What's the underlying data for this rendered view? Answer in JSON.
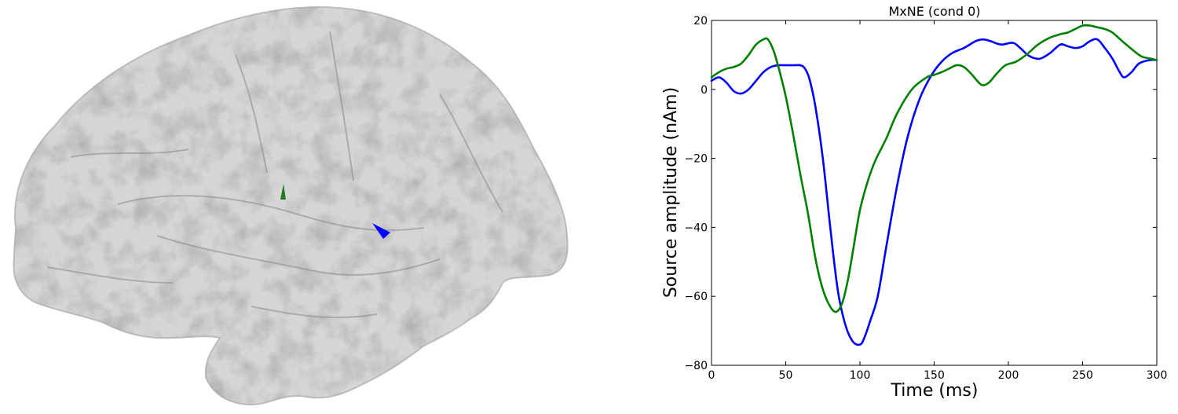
{
  "brain_view": {
    "surface_color": "#9a9a9a",
    "dipoles": [
      {
        "color": "#1f7a1f"
      },
      {
        "color": "#0000ff"
      }
    ]
  },
  "chart_data": {
    "type": "line",
    "title": "MxNE (cond 0)",
    "xlabel": "Time (ms)",
    "ylabel": "Source amplitude (nAm)",
    "xlim": [
      0,
      300
    ],
    "ylim": [
      -80,
      20
    ],
    "grid": false,
    "xticks": [
      0,
      50,
      100,
      150,
      200,
      250,
      300
    ],
    "xtick_labels": [
      "0",
      "50",
      "100",
      "150",
      "200",
      "250",
      "300"
    ],
    "yticks": [
      20,
      0,
      -20,
      -40,
      -60,
      -80
    ],
    "ytick_labels": [
      "20",
      "0",
      "−20",
      "−40",
      "−60",
      "−80"
    ],
    "series": [
      {
        "color": "#0000ff",
        "x": [
          0,
          5,
          10,
          15,
          20,
          25,
          30,
          35,
          40,
          45,
          50,
          55,
          60,
          63,
          66,
          70,
          75,
          80,
          85,
          90,
          95,
          100,
          103,
          107,
          112,
          118,
          125,
          132,
          140,
          148,
          155,
          162,
          170,
          178,
          183,
          188,
          195,
          203,
          208,
          213,
          218,
          222,
          228,
          235,
          240,
          245,
          250,
          255,
          260,
          265,
          270,
          275,
          278,
          283,
          288,
          295,
          300
        ],
        "y": [
          2.5,
          3.5,
          2,
          -0.5,
          -1.2,
          0,
          2.5,
          5,
          6.5,
          7,
          7,
          7,
          7,
          6,
          3,
          -5,
          -20,
          -40,
          -58,
          -68,
          -73,
          -74,
          -72,
          -67,
          -60,
          -45,
          -28,
          -14,
          -3,
          4,
          8,
          10.5,
          12,
          14,
          14.5,
          14,
          13,
          13.5,
          12,
          10,
          9,
          9,
          10.5,
          13,
          12.5,
          12,
          12.5,
          14,
          14.5,
          12,
          9,
          5,
          3.5,
          5,
          7.5,
          8.5,
          8.5
        ]
      },
      {
        "color": "#008000",
        "x": [
          0,
          5,
          10,
          15,
          20,
          25,
          30,
          35,
          38,
          42,
          46,
          50,
          55,
          60,
          65,
          70,
          75,
          80,
          84,
          88,
          92,
          96,
          100,
          105,
          110,
          118,
          125,
          135,
          145,
          150,
          155,
          160,
          165,
          170,
          175,
          180,
          183,
          187,
          192,
          198,
          205,
          212,
          220,
          228,
          235,
          240,
          245,
          250,
          255,
          260,
          265,
          270,
          278,
          285,
          290,
          295,
          300
        ],
        "y": [
          3.5,
          5,
          6,
          6.5,
          7.5,
          10,
          13,
          14.5,
          14.5,
          11,
          5,
          -2,
          -13,
          -25,
          -36,
          -49,
          -58,
          -63,
          -64.5,
          -62,
          -55,
          -45,
          -35,
          -27,
          -21,
          -14,
          -7,
          0,
          3.5,
          4.2,
          5,
          6,
          7,
          6.5,
          4.5,
          2,
          1.2,
          2,
          4.5,
          7,
          8,
          10,
          13,
          15,
          16,
          16.5,
          17.5,
          18.5,
          18.5,
          18,
          17.5,
          16.5,
          13.5,
          11,
          9.5,
          9,
          8.5
        ]
      }
    ]
  }
}
